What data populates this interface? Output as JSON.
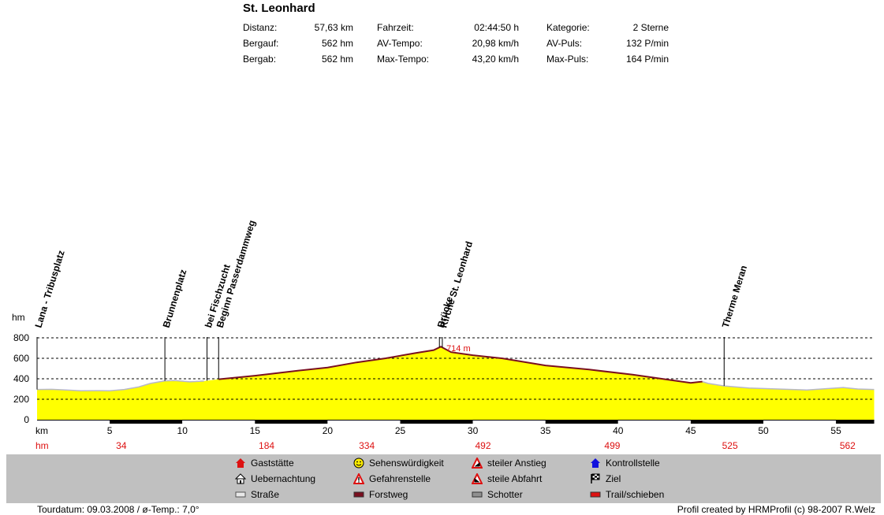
{
  "header": {
    "title": "St. Leonhard",
    "stats": [
      {
        "label": "Distanz:",
        "value": "57,63 km"
      },
      {
        "label": "Bergauf:",
        "value": "562 hm"
      },
      {
        "label": "Bergab:",
        "value": "562 hm"
      },
      {
        "label": "Fahrzeit:",
        "value": "02:44:50 h"
      },
      {
        "label": "AV-Tempo:",
        "value": "20,98 km/h"
      },
      {
        "label": "Max-Tempo:",
        "value": "43,20 km/h"
      },
      {
        "label": "Kategorie:",
        "value": "2 Sterne"
      },
      {
        "label": "AV-Puls:",
        "value": "132 P/min"
      },
      {
        "label": "Max-Puls:",
        "value": "164 P/min"
      }
    ]
  },
  "chart_data": {
    "type": "area",
    "ylabel": "hm",
    "xlabel": "km",
    "ylim": [
      0,
      800
    ],
    "xlim": [
      0,
      57.63
    ],
    "yticks": [
      0,
      200,
      400,
      600,
      800
    ],
    "xticks": [
      5,
      10,
      15,
      20,
      25,
      30,
      35,
      40,
      45,
      50,
      55
    ],
    "grid": "dashed horizontal",
    "max_label": "714 m",
    "max_point": {
      "x": 27.8,
      "y": 714
    },
    "profile": [
      {
        "x": 0,
        "y": 295
      },
      {
        "x": 1,
        "y": 297
      },
      {
        "x": 2,
        "y": 290
      },
      {
        "x": 3,
        "y": 282
      },
      {
        "x": 4,
        "y": 284
      },
      {
        "x": 5,
        "y": 282
      },
      {
        "x": 6,
        "y": 295
      },
      {
        "x": 7,
        "y": 320
      },
      {
        "x": 7.8,
        "y": 355
      },
      {
        "x": 8.8,
        "y": 380
      },
      {
        "x": 9.5,
        "y": 382
      },
      {
        "x": 10.5,
        "y": 370
      },
      {
        "x": 11.5,
        "y": 378
      },
      {
        "x": 12.5,
        "y": 395
      },
      {
        "x": 15,
        "y": 430
      },
      {
        "x": 18,
        "y": 480
      },
      {
        "x": 20,
        "y": 510
      },
      {
        "x": 22,
        "y": 560
      },
      {
        "x": 24,
        "y": 600
      },
      {
        "x": 26,
        "y": 650
      },
      {
        "x": 27.3,
        "y": 680
      },
      {
        "x": 27.8,
        "y": 714
      },
      {
        "x": 28.5,
        "y": 660
      },
      {
        "x": 30,
        "y": 630
      },
      {
        "x": 32,
        "y": 600
      },
      {
        "x": 35,
        "y": 530
      },
      {
        "x": 38,
        "y": 490
      },
      {
        "x": 41,
        "y": 440
      },
      {
        "x": 43,
        "y": 400
      },
      {
        "x": 45,
        "y": 360
      },
      {
        "x": 45.8,
        "y": 372
      },
      {
        "x": 46.2,
        "y": 355
      },
      {
        "x": 47.3,
        "y": 330
      },
      {
        "x": 49,
        "y": 310
      },
      {
        "x": 50,
        "y": 305
      },
      {
        "x": 52,
        "y": 295
      },
      {
        "x": 53,
        "y": 290
      },
      {
        "x": 54,
        "y": 300
      },
      {
        "x": 55.5,
        "y": 315
      },
      {
        "x": 56.5,
        "y": 300
      },
      {
        "x": 57.63,
        "y": 295
      }
    ],
    "forstweg_segments": [
      [
        11.8,
        45.8
      ]
    ],
    "surface_bar": [
      {
        "from": 0,
        "to": 5,
        "type": "Straße"
      },
      {
        "from": 5,
        "to": 10,
        "type": "Forstweg"
      },
      {
        "from": 10,
        "to": 15,
        "type": "Straße"
      },
      {
        "from": 15,
        "to": 20,
        "type": "Forstweg"
      },
      {
        "from": 20,
        "to": 25,
        "type": "Straße"
      },
      {
        "from": 25,
        "to": 30,
        "type": "Forstweg"
      },
      {
        "from": 30,
        "to": 35,
        "type": "Straße"
      },
      {
        "from": 35,
        "to": 40,
        "type": "Forstweg"
      },
      {
        "from": 40,
        "to": 45,
        "type": "Straße"
      },
      {
        "from": 45,
        "to": 50,
        "type": "Forstweg"
      },
      {
        "from": 50,
        "to": 55,
        "type": "Straße"
      },
      {
        "from": 55,
        "to": 57.63,
        "type": "Forstweg"
      }
    ],
    "waypoints": [
      {
        "x": 0,
        "name": "Lana - Tribusplatz"
      },
      {
        "x": 8.8,
        "name": "Brunnenplatz"
      },
      {
        "x": 11.7,
        "name": "bei Fischzucht"
      },
      {
        "x": 12.5,
        "name": "Beginn Passerdammweg"
      },
      {
        "x": 27.7,
        "name": "Brücke"
      },
      {
        "x": 27.9,
        "name": "Kirche St. Leonhard"
      },
      {
        "x": 47.3,
        "name": "Therme Meran"
      }
    ],
    "climb_row": [
      {
        "x": 5.8,
        "value": "34"
      },
      {
        "x": 15.8,
        "value": "184"
      },
      {
        "x": 22.7,
        "value": "334"
      },
      {
        "x": 30.7,
        "value": "492"
      },
      {
        "x": 39.6,
        "value": "499"
      },
      {
        "x": 47.7,
        "value": "525"
      },
      {
        "x": 55.8,
        "value": "562"
      }
    ],
    "climb_label": "hm"
  },
  "legend": [
    {
      "label": "Gaststätte",
      "icon": "house-red-icon"
    },
    {
      "label": "Uebernachtung",
      "icon": "lodging-icon"
    },
    {
      "label": "Straße",
      "icon": "road-swatch-icon",
      "color": "#e8e8e8"
    },
    {
      "label": "Sehenswürdigkeit",
      "icon": "smiley-icon"
    },
    {
      "label": "Gefahrenstelle",
      "icon": "warning-icon"
    },
    {
      "label": "Forstweg",
      "icon": "forest-road-swatch-icon",
      "color": "#7a1020"
    },
    {
      "label": "steiler Anstieg",
      "icon": "steep-climb-icon"
    },
    {
      "label": "steile Abfahrt",
      "icon": "steep-descent-icon"
    },
    {
      "label": "Schotter",
      "icon": "gravel-swatch-icon",
      "color": "#909090"
    },
    {
      "label": "Kontrollstelle",
      "icon": "checkpoint-icon"
    },
    {
      "label": "Ziel",
      "icon": "finish-flag-icon"
    },
    {
      "label": "Trail/schieben",
      "icon": "trail-swatch-icon",
      "color": "#dd1111"
    }
  ],
  "footer": {
    "left": "Tourdatum: 09.03.2008  /  ø-Temp.: 7,0°",
    "right": "Profil created by HRMProfil (c) 98-2007 R.Welz"
  },
  "colors": {
    "fill": "#ffff00",
    "road_line": "#b8b8c8",
    "forstweg": "#7a1020",
    "red_text": "#dd1111",
    "legend_bg": "#c0c0c0"
  }
}
